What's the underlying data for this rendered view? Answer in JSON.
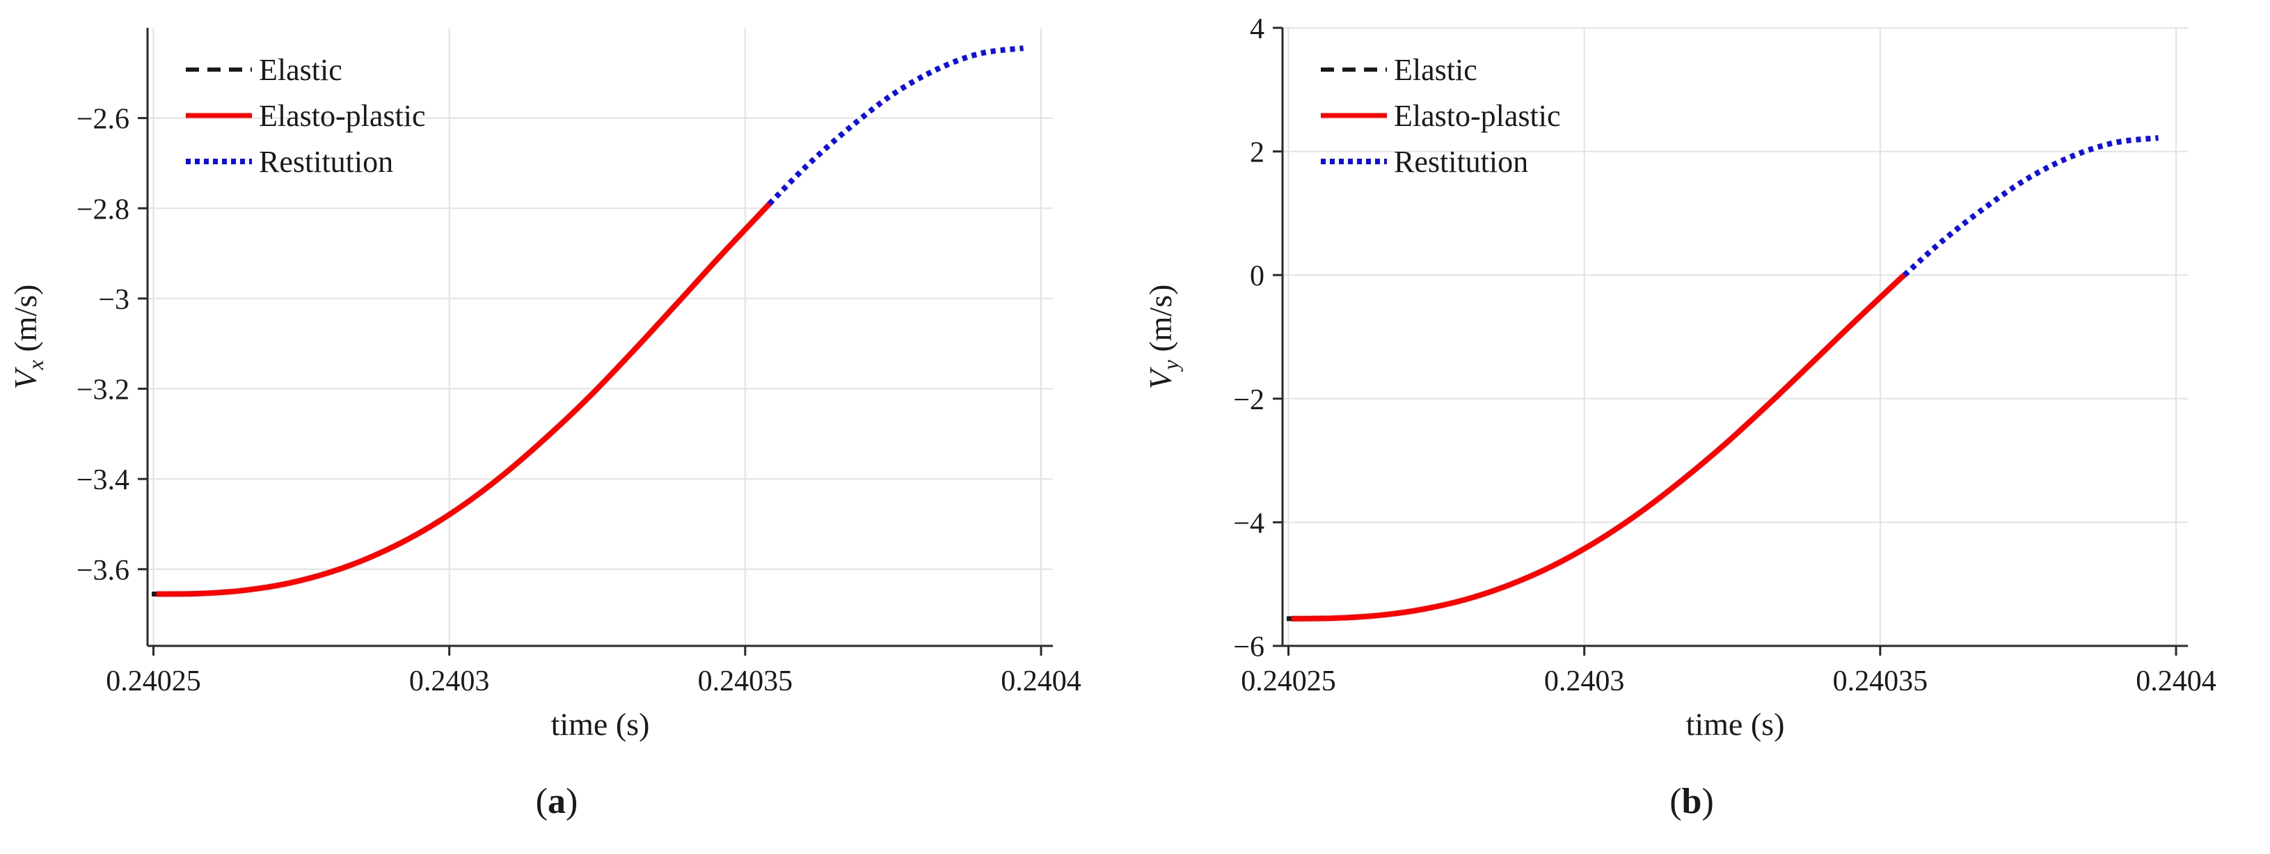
{
  "figure": {
    "background": "#ffffff",
    "colors": {
      "elastic": "#1a1a1a",
      "elasto_plastic": "#ff0000",
      "restitution": "#0f0fe0",
      "grid": "#e2e2e2",
      "axis": "#2a2a2a",
      "text": "#1a1a1a"
    },
    "legend_labels": [
      "Elastic",
      "Elasto-plastic",
      "Restitution"
    ]
  },
  "chart_data": [
    {
      "id": "a",
      "type": "line",
      "caption": "(a)",
      "caption_letter": "a",
      "x_axis": {
        "label": "time (s)",
        "lim": [
          0.240249,
          0.240402
        ],
        "grid": true,
        "ticks": [
          {
            "value": 0.24025,
            "label": "0.24025"
          },
          {
            "value": 0.2403,
            "label": "0.2403"
          },
          {
            "value": 0.24035,
            "label": "0.24035"
          },
          {
            "value": 0.2404,
            "label": "0.2404"
          }
        ]
      },
      "y_axis": {
        "label_var": "V",
        "label_sub": "x",
        "label_unit": " (m/s)",
        "lim": [
          -3.77,
          -2.4
        ],
        "grid": true,
        "ticks": [
          {
            "value": -2.6,
            "label": "−2.6"
          },
          {
            "value": -2.8,
            "label": "−2.8"
          },
          {
            "value": -3.0,
            "label": "−3"
          },
          {
            "value": -3.2,
            "label": "−3.2"
          },
          {
            "value": -3.4,
            "label": "−3.4"
          },
          {
            "value": -3.6,
            "label": "−3.6"
          }
        ]
      },
      "contact_start_time": 0.2402505,
      "phase_transition_time": 0.2403541,
      "contact_end_time": 0.240397,
      "legend": [
        {
          "label": "Elastic",
          "series": "elastic"
        },
        {
          "label": "Elasto-plastic",
          "series": "elasto_plastic"
        },
        {
          "label": "Restitution",
          "series": "restitution"
        }
      ],
      "series": [
        {
          "name": "Elastic",
          "key": "elastic",
          "style": "dashed",
          "note": "visible only as a short dash at contact start, hidden beneath the elasto-plastic curve",
          "points": [
            [
              0.2402497,
              -3.655
            ],
            [
              0.240256,
              -3.655
            ]
          ]
        },
        {
          "name": "Elasto-plastic",
          "key": "elasto_plastic",
          "style": "solid",
          "points": [
            [
              0.2402505,
              -3.655
            ],
            [
              0.2402578,
              -3.654
            ],
            [
              0.2402652,
              -3.647
            ],
            [
              0.2402725,
              -3.632
            ],
            [
              0.2402798,
              -3.607
            ],
            [
              0.2402871,
              -3.571
            ],
            [
              0.2402945,
              -3.523
            ],
            [
              0.2403018,
              -3.463
            ],
            [
              0.2403091,
              -3.391
            ],
            [
              0.2403164,
              -3.308
            ],
            [
              0.2403238,
              -3.216
            ],
            [
              0.2403311,
              -3.116
            ],
            [
              0.2403384,
              -3.012
            ],
            [
              0.2403457,
              -2.907
            ],
            [
              0.2403531,
              -2.804
            ],
            [
              0.2403541,
              -2.79
            ]
          ]
        },
        {
          "name": "Restitution",
          "key": "restitution",
          "style": "dotted",
          "points": [
            [
              0.2403541,
              -2.79
            ],
            [
              0.2403604,
              -2.706
            ],
            [
              0.2403677,
              -2.621
            ],
            [
              0.240375,
              -2.547
            ],
            [
              0.2403824,
              -2.492
            ],
            [
              0.2403897,
              -2.457
            ],
            [
              0.240397,
              -2.445
            ]
          ]
        }
      ]
    },
    {
      "id": "b",
      "type": "line",
      "caption": "(b)",
      "caption_letter": "b",
      "x_axis": {
        "label": "time (s)",
        "lim": [
          0.240249,
          0.240402
        ],
        "grid": true,
        "ticks": [
          {
            "value": 0.24025,
            "label": "0.24025"
          },
          {
            "value": 0.2403,
            "label": "0.2403"
          },
          {
            "value": 0.24035,
            "label": "0.24035"
          },
          {
            "value": 0.2404,
            "label": "0.2404"
          }
        ]
      },
      "y_axis": {
        "label_var": "V",
        "label_sub": "y",
        "label_unit": " (m/s)",
        "lim": [
          -6,
          4
        ],
        "grid": true,
        "ticks": [
          {
            "value": 4,
            "label": "4"
          },
          {
            "value": 2,
            "label": "2"
          },
          {
            "value": 0,
            "label": "0"
          },
          {
            "value": -2,
            "label": "−2"
          },
          {
            "value": -4,
            "label": "−4"
          },
          {
            "value": -6,
            "label": "−6"
          }
        ]
      },
      "contact_start_time": 0.2402505,
      "phase_transition_time": 0.2403541,
      "contact_end_time": 0.240397,
      "legend": [
        {
          "label": "Elastic",
          "series": "elastic"
        },
        {
          "label": "Elasto-plastic",
          "series": "elasto_plastic"
        },
        {
          "label": "Restitution",
          "series": "restitution"
        }
      ],
      "series": [
        {
          "name": "Elastic",
          "key": "elastic",
          "style": "dashed",
          "note": "visible only as a short dash at contact start, hidden beneath the elasto-plastic curve",
          "points": [
            [
              0.2402497,
              -5.56
            ],
            [
              0.240256,
              -5.56
            ]
          ]
        },
        {
          "name": "Elasto-plastic",
          "key": "elasto_plastic",
          "style": "solid",
          "points": [
            [
              0.2402505,
              -5.56
            ],
            [
              0.2402578,
              -5.551
            ],
            [
              0.2402652,
              -5.507
            ],
            [
              0.2402725,
              -5.411
            ],
            [
              0.2402798,
              -5.253
            ],
            [
              0.2402871,
              -5.021
            ],
            [
              0.2402945,
              -4.713
            ],
            [
              0.2403018,
              -4.325
            ],
            [
              0.2403091,
              -3.863
            ],
            [
              0.2403164,
              -3.328
            ],
            [
              0.2403238,
              -2.734
            ],
            [
              0.2403311,
              -2.094
            ],
            [
              0.2403384,
              -1.426
            ],
            [
              0.2403457,
              -0.751
            ],
            [
              0.2403531,
              -0.085
            ],
            [
              0.2403541,
              0.0
            ]
          ]
        },
        {
          "name": "Restitution",
          "key": "restitution",
          "style": "dotted",
          "points": [
            [
              0.2403541,
              0.0
            ],
            [
              0.2403604,
              0.543
            ],
            [
              0.2403677,
              1.09
            ],
            [
              0.240375,
              1.567
            ],
            [
              0.2403824,
              1.921
            ],
            [
              0.2403897,
              2.143
            ],
            [
              0.240397,
              2.22
            ]
          ]
        }
      ]
    }
  ]
}
